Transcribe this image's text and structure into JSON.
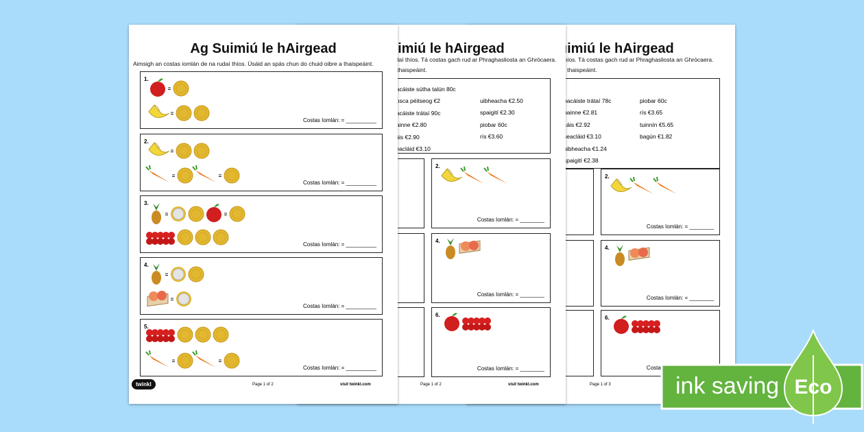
{
  "pages": [
    {
      "title": "Ag Suimiú le hAirgead",
      "instruction": [
        "Aimsigh an costas iomlán de na rudaí thíos. Úsáid an spás chun do chuid oibre a thaispeáint."
      ],
      "questions": [
        {
          "number": "1.",
          "total_label": "Costas Iomlán: = __________"
        },
        {
          "number": "2.",
          "total_label": "Costas Iomlán: = __________"
        },
        {
          "number": "3.",
          "total_label": "Costas Iomlán: = __________"
        },
        {
          "number": "4.",
          "total_label": "Costas Iomlán: = __________"
        },
        {
          "number": "5.",
          "total_label": "Costas Iomlán: = __________"
        }
      ],
      "footer": {
        "logo": "twinkl",
        "page": "Page 1 of 2",
        "site": "visit twinkl.com"
      }
    },
    {
      "title": "Ag Suimiú le hAirgead",
      "instruction": [
        "udaí thíos. Tá costas gach rud ar Phraghasliosta an Ghrócaera.",
        "a thaispeáint."
      ],
      "price_list": {
        "left": [
          "pacáiste sútha talún 80c",
          "bosca péitseog €2",
          "pacáiste trátaí 90c",
          "bainne €2.80",
          "cáis €2.90",
          "seacláid €3.10"
        ],
        "right": [
          "uibheacha €2.50",
          "spaigití €2.30",
          "piobar 60c",
          "rís €3.60"
        ]
      },
      "questions": [
        {
          "number": "2.",
          "total_label": "Costas Iomlán: = ________"
        },
        {
          "number": "4.",
          "total_label": "Costas Iomlán: = ________"
        },
        {
          "number": "6.",
          "total_label": "Costas Iomlán: = ________"
        }
      ],
      "footer": {
        "page": "Page 1 of 2",
        "site": "visit twinkl.com"
      }
    },
    {
      "title": "Ag Suimiú le hAirgead",
      "instruction": [
        "thíos. Tá costas gach rud ar Phraghasliosta an Ghrócaera.",
        "a thaispeáint."
      ],
      "price_list": {
        "left": [
          "pacáiste trátaí 78c",
          "bainne €2.81",
          "cáis €2.92",
          "seacláid €3.10",
          "uibheacha €1.24",
          "spaigití €2.38"
        ],
        "right": [
          "piobar 60c",
          "rís €3.65",
          "tuinnín €5.65",
          "bagún €1.82"
        ]
      },
      "questions": [
        {
          "number": "2.",
          "total_label": "Costas Iomlán: = ________"
        },
        {
          "number": "4.",
          "total_label": "Costas Iomlán: = ________"
        },
        {
          "number": "6.",
          "total_label": "Costas Iomlán: = ________"
        }
      ],
      "footer": {
        "page": "Page 1 of 3"
      }
    }
  ],
  "badge": {
    "text": "ink saving",
    "label": "Eco"
  }
}
